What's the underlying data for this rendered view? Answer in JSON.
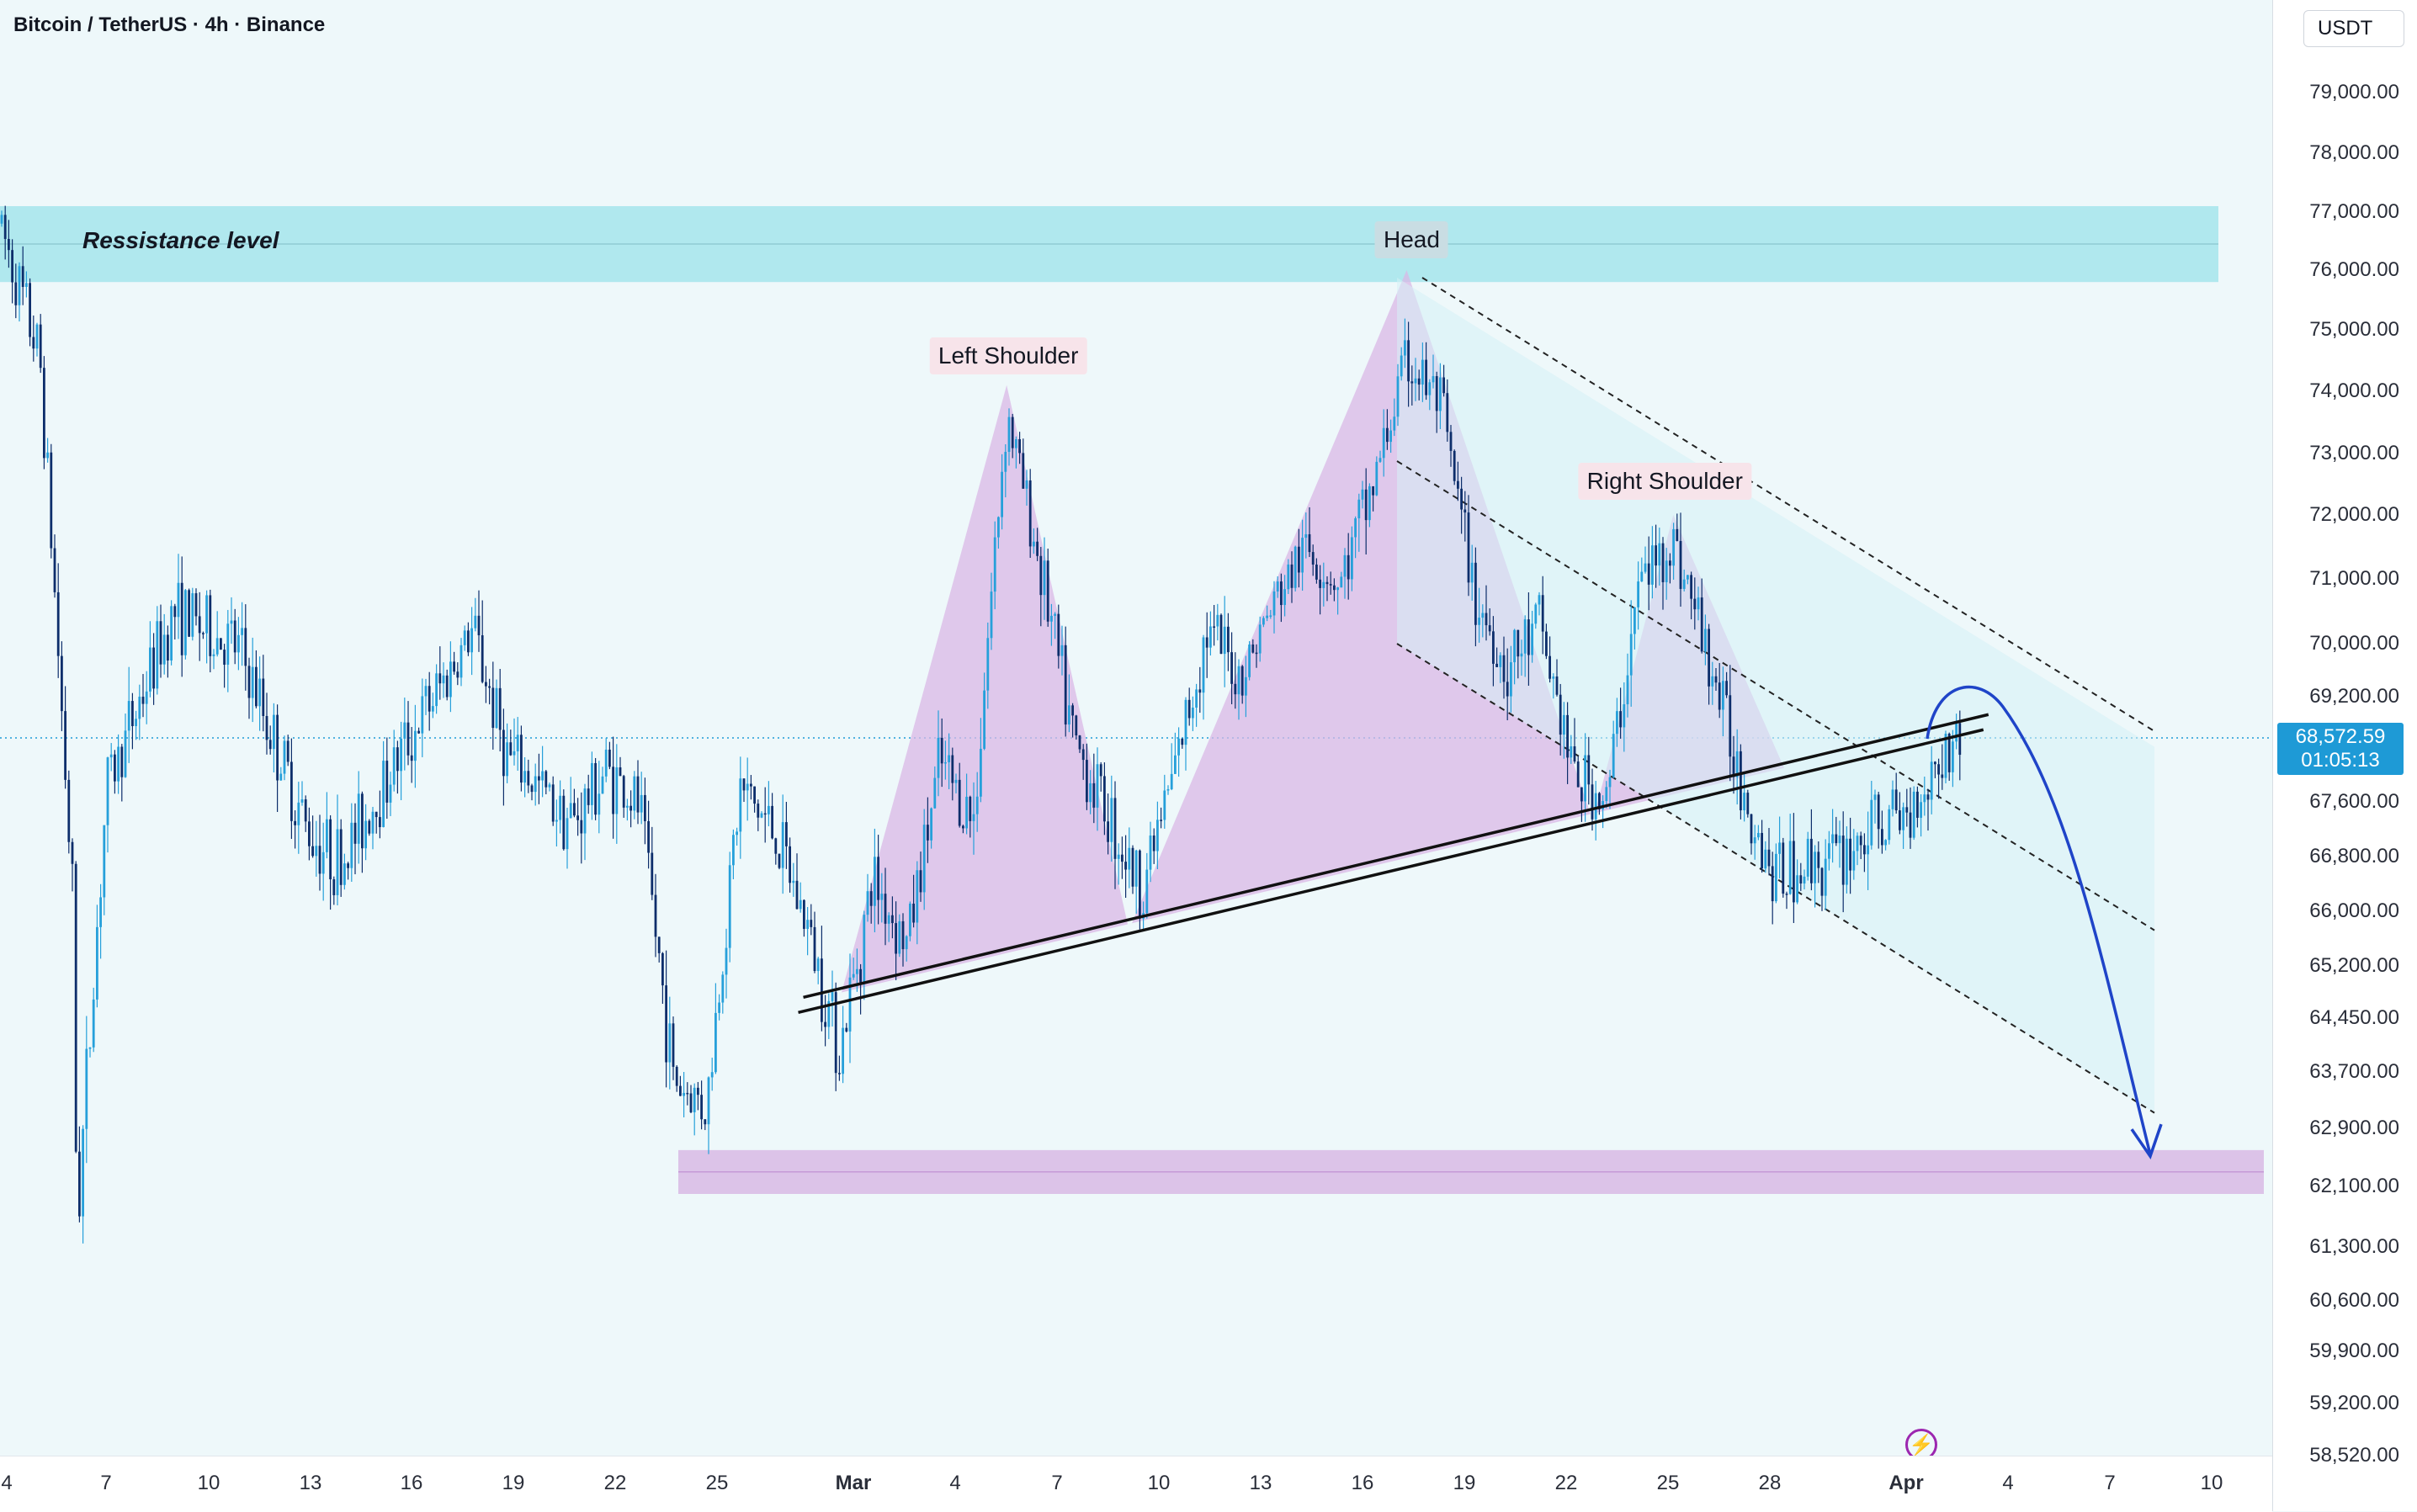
{
  "header": {
    "title": "Bitcoin / TetherUS · 4h · Binance"
  },
  "price_axis": {
    "currency": "USDT",
    "ticks": [
      "79,000.00",
      "78,000.00",
      "77,000.00",
      "76,000.00",
      "75,000.00",
      "74,000.00",
      "73,000.00",
      "72,000.00",
      "71,000.00",
      "70,000.00",
      "69,200.00",
      "67,600.00",
      "66,800.00",
      "66,000.00",
      "65,200.00",
      "64,450.00",
      "63,700.00",
      "62,900.00",
      "62,100.00",
      "61,300.00",
      "60,600.00",
      "59,900.00",
      "59,200.00",
      "58,520.00"
    ],
    "current_price": "68,572.59",
    "countdown": "01:05:13"
  },
  "time_axis": {
    "ticks": [
      "4",
      "7",
      "10",
      "13",
      "16",
      "19",
      "22",
      "25",
      "Mar",
      "4",
      "7",
      "10",
      "13",
      "16",
      "19",
      "22",
      "25",
      "28",
      "Apr",
      "4",
      "7",
      "10"
    ],
    "bold_ticks": [
      "Mar",
      "Apr"
    ]
  },
  "annotations": {
    "resistance": "Ressistance level",
    "left_shoulder": "Left Shoulder",
    "head": "Head",
    "right_shoulder": "Right Shoulder"
  },
  "colors": {
    "up": "#26a0da",
    "down": "#0d2e6b",
    "resistance_zone": "#a8e6ec",
    "support_zone": "#d7b5e3",
    "pattern_fill": "#d9b8e6",
    "channel_fill": "#d5f1f5",
    "projection": "#1f44c8"
  },
  "chart_data": {
    "type": "candlestick",
    "title": "Bitcoin / TetherUS · 4h · Binance",
    "symbol": "BTCUSDT",
    "interval": "4h",
    "exchange": "Binance",
    "y_unit": "USDT",
    "x_range": [
      "2024-02-04",
      "2024-04-10"
    ],
    "current_price": 68572.59,
    "resistance_zone": [
      75800,
      77100
    ],
    "support_zone": [
      62000,
      62600
    ],
    "pattern": "head-and-shoulders",
    "left_shoulder": {
      "date": "2024-03-05",
      "price": 74100
    },
    "head": {
      "date": "2024-03-17",
      "price": 76000
    },
    "right_shoulder": {
      "date": "2024-03-25",
      "price": 72000
    },
    "neckline": [
      {
        "date": "2024-02-28",
        "price": 64700
      },
      {
        "date": "2024-04-03",
        "price": 68800
      }
    ],
    "projected_target": 62400,
    "path_anchors": [
      {
        "date": "2024-02-04",
        "price": 76800
      },
      {
        "date": "2024-02-05",
        "price": 74500
      },
      {
        "date": "2024-02-06",
        "price": 66000
      },
      {
        "date": "2024-02-06",
        "price": 61500
      },
      {
        "date": "2024-02-07",
        "price": 67800
      },
      {
        "date": "2024-02-09",
        "price": 70500
      },
      {
        "date": "2024-02-11",
        "price": 69900
      },
      {
        "date": "2024-02-13",
        "price": 67200
      },
      {
        "date": "2024-02-14",
        "price": 66700
      },
      {
        "date": "2024-02-16",
        "price": 68500
      },
      {
        "date": "2024-02-18",
        "price": 70200
      },
      {
        "date": "2024-02-19",
        "price": 68300
      },
      {
        "date": "2024-02-21",
        "price": 67300
      },
      {
        "date": "2024-02-22",
        "price": 68100
      },
      {
        "date": "2024-02-23",
        "price": 67500
      },
      {
        "date": "2024-02-24",
        "price": 63600
      },
      {
        "date": "2024-02-25",
        "price": 63200
      },
      {
        "date": "2024-02-26",
        "price": 67800
      },
      {
        "date": "2024-02-27",
        "price": 67200
      },
      {
        "date": "2024-02-28",
        "price": 65800
      },
      {
        "date": "2024-02-29",
        "price": 64000
      },
      {
        "date": "2024-03-01",
        "price": 66500
      },
      {
        "date": "2024-03-02",
        "price": 65500
      },
      {
        "date": "2024-03-03",
        "price": 68200
      },
      {
        "date": "2024-03-04",
        "price": 67300
      },
      {
        "date": "2024-03-05",
        "price": 73700
      },
      {
        "date": "2024-03-06",
        "price": 71200
      },
      {
        "date": "2024-03-07",
        "price": 68500
      },
      {
        "date": "2024-03-08",
        "price": 67500
      },
      {
        "date": "2024-03-09",
        "price": 66300
      },
      {
        "date": "2024-03-10",
        "price": 68000
      },
      {
        "date": "2024-03-11",
        "price": 70200
      },
      {
        "date": "2024-03-12",
        "price": 69500
      },
      {
        "date": "2024-03-13",
        "price": 70600
      },
      {
        "date": "2024-03-14",
        "price": 71500
      },
      {
        "date": "2024-03-15",
        "price": 70900
      },
      {
        "date": "2024-03-16",
        "price": 72500
      },
      {
        "date": "2024-03-17",
        "price": 74500
      },
      {
        "date": "2024-03-18",
        "price": 73800
      },
      {
        "date": "2024-03-19",
        "price": 70800
      },
      {
        "date": "2024-03-20",
        "price": 69600
      },
      {
        "date": "2024-03-21",
        "price": 70300
      },
      {
        "date": "2024-03-22",
        "price": 68000
      },
      {
        "date": "2024-03-23",
        "price": 67600
      },
      {
        "date": "2024-03-24",
        "price": 71000
      },
      {
        "date": "2024-03-25",
        "price": 71600
      },
      {
        "date": "2024-03-26",
        "price": 69900
      },
      {
        "date": "2024-03-27",
        "price": 68000
      },
      {
        "date": "2024-03-28",
        "price": 66500
      },
      {
        "date": "2024-03-29",
        "price": 66700
      },
      {
        "date": "2024-03-30",
        "price": 66800
      },
      {
        "date": "2024-03-31",
        "price": 67200
      },
      {
        "date": "2024-04-01",
        "price": 67400
      },
      {
        "date": "2024-04-02",
        "price": 68300
      },
      {
        "date": "2024-04-02",
        "price": 68572.59
      }
    ]
  }
}
